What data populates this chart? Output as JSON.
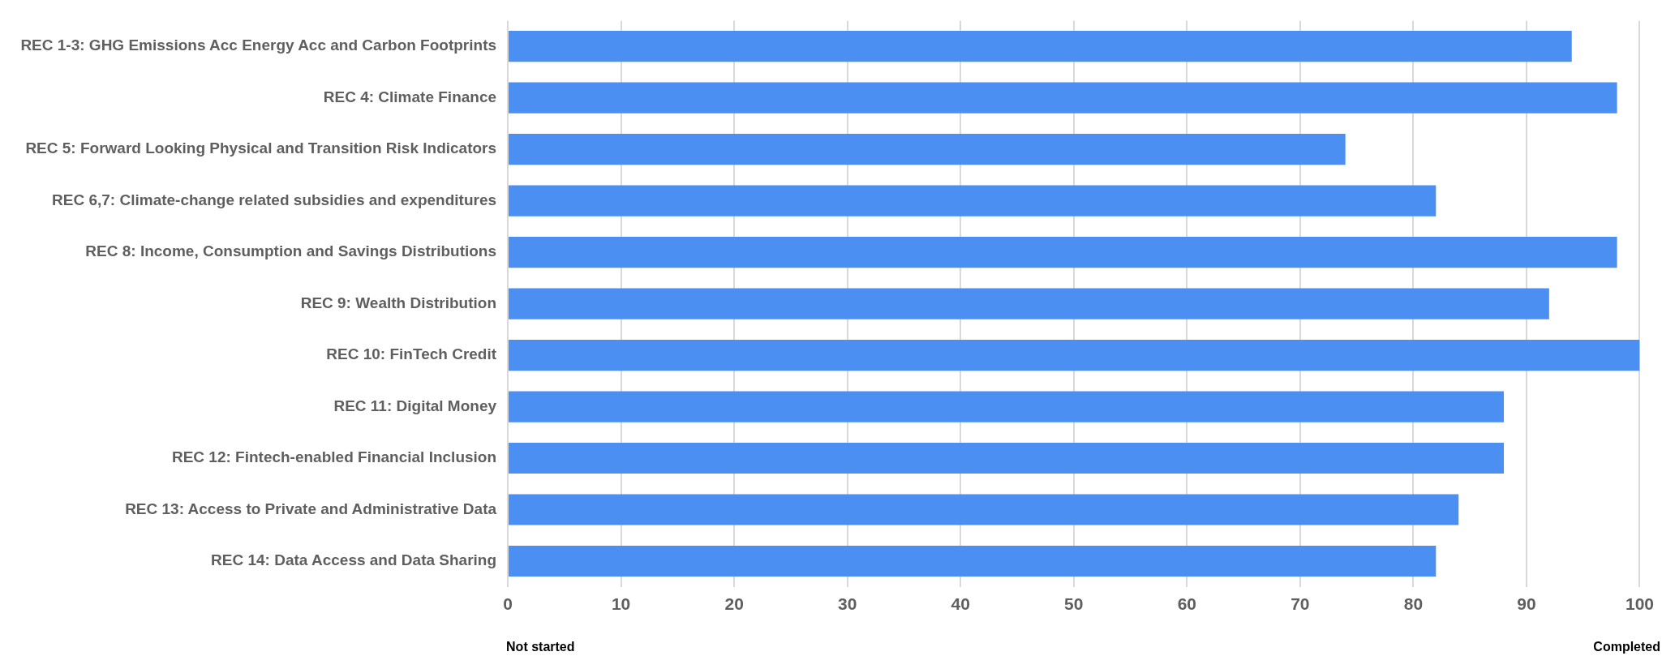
{
  "chart_data": {
    "type": "bar",
    "orientation": "horizontal",
    "categories": [
      "REC 1-3: GHG Emissions Acc Energy Acc and Carbon Footprints",
      "REC 4: Climate Finance",
      "REC 5: Forward Looking Physical and Transition Risk Indicators",
      "REC 6,7: Climate-change related subsidies and expenditures",
      "REC 8: Income, Consumption and Savings Distributions",
      "REC 9: Wealth Distribution",
      "REC 10: FinTech Credit",
      "REC 11: Digital Money",
      "REC 12: Fintech-enabled Financial Inclusion",
      "REC 13: Access to Private and Administrative Data",
      "REC 14: Data Access and Data Sharing"
    ],
    "values": [
      94,
      98,
      74,
      82,
      98,
      92,
      100,
      88,
      88,
      84,
      82
    ],
    "color": "#4b8ff2",
    "xlim": [
      0,
      100
    ],
    "xticks": [
      0,
      10,
      20,
      30,
      40,
      50,
      60,
      70,
      80,
      90,
      100
    ],
    "grid": "x",
    "legend": false,
    "annotations": [
      "Not started",
      "Completed"
    ]
  }
}
